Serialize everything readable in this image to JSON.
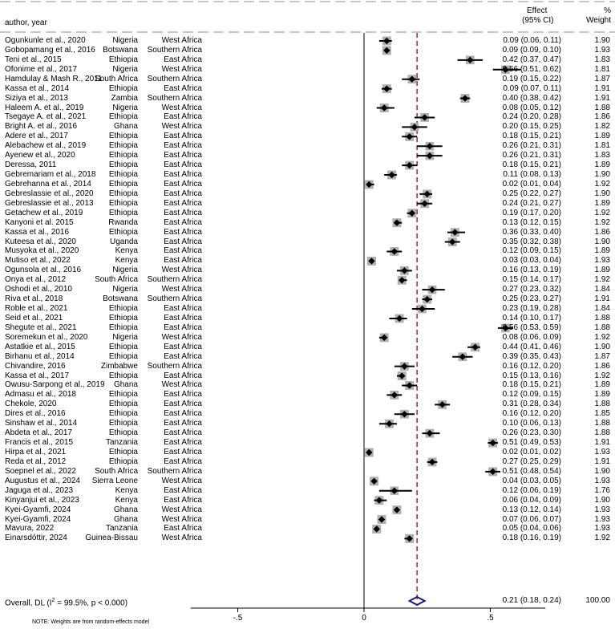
{
  "header": {
    "col_author": "author, year",
    "col_effect_1": "Effect",
    "col_effect_2": "(95% CI)",
    "col_pct": "%",
    "col_weight": "Weight"
  },
  "overall": {
    "label": "Overall, DL (I",
    "label_sup": "2",
    "label_rest": " = 99.5%, p < 0.000)",
    "ci": "0.21 (0.18, 0.24)",
    "weight": "100.00"
  },
  "footnote": "NOTE: Weights are from random-effects model",
  "chart_data": {
    "type": "forest",
    "title": "",
    "xlabel": "",
    "ylabel": "",
    "xlim": [
      -0.75,
      0.75
    ],
    "x_ticks": [
      -0.5,
      0,
      0.5
    ],
    "x_tick_labels": [
      "-.5",
      "0",
      ".5"
    ],
    "summary_line": 0.21,
    "studies": [
      {
        "author": "Ogunkunle et al., 2020",
        "country": "Nigeria",
        "region": "West Africa",
        "es": 0.09,
        "lo": 0.06,
        "hi": 0.11,
        "weight": 1.9,
        "text": "0.09 (0.06, 0.11)",
        "wtext": "1.90"
      },
      {
        "author": "Gobopamang et al., 2016",
        "country": "Botswana",
        "region": "Southern Africa",
        "es": 0.09,
        "lo": 0.09,
        "hi": 0.1,
        "weight": 1.93,
        "text": "0.09 (0.09, 0.10)",
        "wtext": "1.93"
      },
      {
        "author": "Teni et al., 2015",
        "country": "Ethiopia",
        "region": "East Africa",
        "es": 0.42,
        "lo": 0.37,
        "hi": 0.47,
        "weight": 1.83,
        "text": "0.42 (0.37, 0.47)",
        "wtext": "1.83"
      },
      {
        "author": "Ofonime et al., 2017",
        "country": "Nigeria",
        "region": "West Africa",
        "es": 0.56,
        "lo": 0.51,
        "hi": 0.62,
        "weight": 1.81,
        "text": "0.56 (0.51, 0.62)",
        "wtext": "1.81"
      },
      {
        "author": "Hamdulay & Mash R., 2011",
        "country": "South Africa",
        "region": "Southern Africa",
        "es": 0.19,
        "lo": 0.15,
        "hi": 0.22,
        "weight": 1.87,
        "text": "0.19 (0.15, 0.22)",
        "wtext": "1.87"
      },
      {
        "author": "Kassa et al., 2014",
        "country": "Ethiopia",
        "region": "East Africa",
        "es": 0.09,
        "lo": 0.07,
        "hi": 0.11,
        "weight": 1.91,
        "text": "0.09 (0.07, 0.11)",
        "wtext": "1.91"
      },
      {
        "author": "Siziya et al., 2013",
        "country": "Zambia",
        "region": "Southern Africa",
        "es": 0.4,
        "lo": 0.38,
        "hi": 0.42,
        "weight": 1.91,
        "text": "0.40 (0.38, 0.42)",
        "wtext": "1.91"
      },
      {
        "author": "Haleem A. et al., 2019",
        "country": "Nigeria",
        "region": "West Africa",
        "es": 0.08,
        "lo": 0.05,
        "hi": 0.12,
        "weight": 1.88,
        "text": "0.08 (0.05, 0.12)",
        "wtext": "1.88"
      },
      {
        "author": "Tsegaye A. et al., 2021",
        "country": "Ethiopia",
        "region": "East Africa",
        "es": 0.24,
        "lo": 0.2,
        "hi": 0.28,
        "weight": 1.86,
        "text": "0.24 (0.20, 0.28)",
        "wtext": "1.86"
      },
      {
        "author": "Bright A. et al., 2016",
        "country": "Ghana",
        "region": "West Africa",
        "es": 0.2,
        "lo": 0.15,
        "hi": 0.25,
        "weight": 1.82,
        "text": "0.20 (0.15, 0.25)",
        "wtext": "1.82"
      },
      {
        "author": "Adere et al., 2017",
        "country": "Ethiopia",
        "region": "East Africa",
        "es": 0.18,
        "lo": 0.15,
        "hi": 0.21,
        "weight": 1.89,
        "text": "0.18 (0.15, 0.21)",
        "wtext": "1.89"
      },
      {
        "author": "Alebachew et al., 2019",
        "country": "Ethiopia",
        "region": "East Africa",
        "es": 0.26,
        "lo": 0.21,
        "hi": 0.31,
        "weight": 1.81,
        "text": "0.26 (0.21, 0.31)",
        "wtext": "1.81"
      },
      {
        "author": "Ayenew et al., 2020",
        "country": "Ethiopia",
        "region": "East Africa",
        "es": 0.26,
        "lo": 0.21,
        "hi": 0.31,
        "weight": 1.83,
        "text": "0.26 (0.21, 0.31)",
        "wtext": "1.83"
      },
      {
        "author": "Deressa, 2011",
        "country": "Ethiopia",
        "region": "East Africa",
        "es": 0.18,
        "lo": 0.15,
        "hi": 0.21,
        "weight": 1.89,
        "text": "0.18 (0.15, 0.21)",
        "wtext": "1.89"
      },
      {
        "author": "Gebremariam et al., 2018",
        "country": "Ethiopia",
        "region": "East Africa",
        "es": 0.11,
        "lo": 0.08,
        "hi": 0.13,
        "weight": 1.9,
        "text": "0.11 (0.08, 0.13)",
        "wtext": "1.90"
      },
      {
        "author": "Gebrehanna et al., 2014",
        "country": "Ethiopia",
        "region": "East Africa",
        "es": 0.02,
        "lo": 0.01,
        "hi": 0.04,
        "weight": 1.92,
        "text": "0.02 (0.01, 0.04)",
        "wtext": "1.92"
      },
      {
        "author": "Gebreslassie et al., 2020",
        "country": "Ethiopia",
        "region": "East Africa",
        "es": 0.25,
        "lo": 0.22,
        "hi": 0.27,
        "weight": 1.9,
        "text": "0.25 (0.22, 0.27)",
        "wtext": "1.90"
      },
      {
        "author": "Gebreslassie et al., 2013",
        "country": "Ethiopia",
        "region": "East Africa",
        "es": 0.24,
        "lo": 0.21,
        "hi": 0.27,
        "weight": 1.89,
        "text": "0.24 (0.21, 0.27)",
        "wtext": "1.89"
      },
      {
        "author": "Getachew et al., 2019",
        "country": "Ethiopia",
        "region": "East Africa",
        "es": 0.19,
        "lo": 0.17,
        "hi": 0.2,
        "weight": 1.92,
        "text": "0.19 (0.17, 0.20)",
        "wtext": "1.92"
      },
      {
        "author": "Kanyoni et al. 2015",
        "country": "Rwanda",
        "region": "East Africa",
        "es": 0.13,
        "lo": 0.12,
        "hi": 0.15,
        "weight": 1.92,
        "text": "0.13 (0.12, 0.15)",
        "wtext": "1.92"
      },
      {
        "author": "Kassa et al., 2016",
        "country": "Ethiopia",
        "region": "East Africa",
        "es": 0.36,
        "lo": 0.33,
        "hi": 0.4,
        "weight": 1.86,
        "text": "0.36 (0.33, 0.40)",
        "wtext": "1.86"
      },
      {
        "author": "Kuteesa et al., 2020",
        "country": "Uganda",
        "region": "East Africa",
        "es": 0.35,
        "lo": 0.32,
        "hi": 0.38,
        "weight": 1.9,
        "text": "0.35 (0.32, 0.38)",
        "wtext": "1.90"
      },
      {
        "author": "Musyoka et al., 2020",
        "country": "Kenya",
        "region": "East Africa",
        "es": 0.12,
        "lo": 0.09,
        "hi": 0.15,
        "weight": 1.89,
        "text": "0.12 (0.09, 0.15)",
        "wtext": "1.89"
      },
      {
        "author": "Mutiso et al., 2022",
        "country": "Kenya",
        "region": "East Africa",
        "es": 0.03,
        "lo": 0.03,
        "hi": 0.04,
        "weight": 1.93,
        "text": "0.03 (0.03, 0.04)",
        "wtext": "1.93"
      },
      {
        "author": "Ogunsola et al., 2016",
        "country": "Nigeria",
        "region": "West Africa",
        "es": 0.16,
        "lo": 0.13,
        "hi": 0.19,
        "weight": 1.89,
        "text": "0.16 (0.13, 0.19)",
        "wtext": "1.89"
      },
      {
        "author": "Onya et al., 2012",
        "country": "South Africa",
        "region": "Southern Africa",
        "es": 0.15,
        "lo": 0.14,
        "hi": 0.17,
        "weight": 1.92,
        "text": "0.15 (0.14, 0.17)",
        "wtext": "1.92"
      },
      {
        "author": "Oshodi et al., 2010",
        "country": "Nigeria",
        "region": "West Africa",
        "es": 0.27,
        "lo": 0.23,
        "hi": 0.32,
        "weight": 1.84,
        "text": "0.27 (0.23, 0.32)",
        "wtext": "1.84"
      },
      {
        "author": "Riva et al., 2018",
        "country": "Botswana",
        "region": "Southern Africa",
        "es": 0.25,
        "lo": 0.23,
        "hi": 0.27,
        "weight": 1.91,
        "text": "0.25 (0.23, 0.27)",
        "wtext": "1.91"
      },
      {
        "author": "Roble et al., 2021",
        "country": "Ethiopia",
        "region": "East Africa",
        "es": 0.23,
        "lo": 0.19,
        "hi": 0.28,
        "weight": 1.84,
        "text": "0.23 (0.19, 0.28)",
        "wtext": "1.84"
      },
      {
        "author": "Seid et al., 2021",
        "country": "Ethiopia",
        "region": "East Africa",
        "es": 0.14,
        "lo": 0.1,
        "hi": 0.17,
        "weight": 1.88,
        "text": "0.14 (0.10, 0.17)",
        "wtext": "1.88"
      },
      {
        "author": "Shegute et al., 2021",
        "country": "Ethiopia",
        "region": "East Africa",
        "es": 0.56,
        "lo": 0.53,
        "hi": 0.59,
        "weight": 1.88,
        "text": "0.56 (0.53, 0.59)",
        "wtext": "1.88"
      },
      {
        "author": "Soremekun et al., 2020",
        "country": "Nigeria",
        "region": "West Africa",
        "es": 0.08,
        "lo": 0.06,
        "hi": 0.09,
        "weight": 1.92,
        "text": "0.08 (0.06, 0.09)",
        "wtext": "1.92"
      },
      {
        "author": "Astatkie et al., 2015",
        "country": "Ethiopia",
        "region": "East Africa",
        "es": 0.44,
        "lo": 0.41,
        "hi": 0.46,
        "weight": 1.9,
        "text": "0.44 (0.41, 0.46)",
        "wtext": "1.90"
      },
      {
        "author": "Birhanu et al., 2014",
        "country": "Ethiopia",
        "region": "East Africa",
        "es": 0.39,
        "lo": 0.35,
        "hi": 0.43,
        "weight": 1.87,
        "text": "0.39 (0.35, 0.43)",
        "wtext": "1.87"
      },
      {
        "author": "Chivandire, 2016",
        "country": "Zimbabwe",
        "region": "Southern Africa",
        "es": 0.16,
        "lo": 0.12,
        "hi": 0.2,
        "weight": 1.86,
        "text": "0.16 (0.12, 0.20)",
        "wtext": "1.86"
      },
      {
        "author": "Kassa et al., 2017",
        "country": "Ethiopia",
        "region": "East Africa",
        "es": 0.15,
        "lo": 0.13,
        "hi": 0.16,
        "weight": 1.92,
        "text": "0.15 (0.13, 0.16)",
        "wtext": "1.92"
      },
      {
        "author": "Owusu-Sarpong et al., 2019",
        "country": "Ghana",
        "region": "West Africa",
        "es": 0.18,
        "lo": 0.15,
        "hi": 0.21,
        "weight": 1.89,
        "text": "0.18 (0.15, 0.21)",
        "wtext": "1.89"
      },
      {
        "author": "Admasu et al., 2018",
        "country": "Ethiopia",
        "region": "East Africa",
        "es": 0.12,
        "lo": 0.09,
        "hi": 0.15,
        "weight": 1.89,
        "text": "0.12 (0.09, 0.15)",
        "wtext": "1.89"
      },
      {
        "author": "Chekole, 2020",
        "country": "Ethiopia",
        "region": "East Africa",
        "es": 0.31,
        "lo": 0.28,
        "hi": 0.34,
        "weight": 1.88,
        "text": "0.31 (0.28, 0.34)",
        "wtext": "1.88"
      },
      {
        "author": "Dires et al., 2016",
        "country": "Ethiopia",
        "region": "East Africa",
        "es": 0.16,
        "lo": 0.12,
        "hi": 0.2,
        "weight": 1.85,
        "text": "0.16 (0.12, 0.20)",
        "wtext": "1.85"
      },
      {
        "author": "Sinshaw et al., 2014",
        "country": "Ethiopia",
        "region": "East Africa",
        "es": 0.1,
        "lo": 0.06,
        "hi": 0.13,
        "weight": 1.88,
        "text": "0.10 (0.06, 0.13)",
        "wtext": "1.88"
      },
      {
        "author": "Abdeta et al., 2017",
        "country": "Ethiopia",
        "region": "East Africa",
        "es": 0.26,
        "lo": 0.23,
        "hi": 0.3,
        "weight": 1.88,
        "text": "0.26 (0.23, 0.30)",
        "wtext": "1.88"
      },
      {
        "author": "Francis et al., 2015",
        "country": "Tanzania",
        "region": "East Africa",
        "es": 0.51,
        "lo": 0.49,
        "hi": 0.53,
        "weight": 1.91,
        "text": "0.51 (0.49, 0.53)",
        "wtext": "1.91"
      },
      {
        "author": "Hirpa et al., 2021",
        "country": "Ethiopia",
        "region": "East Africa",
        "es": 0.02,
        "lo": 0.01,
        "hi": 0.02,
        "weight": 1.93,
        "text": "0.02 (0.01, 0.02)",
        "wtext": "1.93"
      },
      {
        "author": "Reda et al., 2012",
        "country": "Ethiopia",
        "region": "East Africa",
        "es": 0.27,
        "lo": 0.25,
        "hi": 0.29,
        "weight": 1.91,
        "text": "0.27 (0.25, 0.29)",
        "wtext": "1.91"
      },
      {
        "author": "Soepnel et al., 2022",
        "country": "South Africa",
        "region": "Southern Africa",
        "es": 0.51,
        "lo": 0.48,
        "hi": 0.54,
        "weight": 1.9,
        "text": "0.51 (0.48, 0.54)",
        "wtext": "1.90"
      },
      {
        "author": "Augustus et al., 2024",
        "country": "Sierra Leone",
        "region": "West Africa",
        "es": 0.04,
        "lo": 0.03,
        "hi": 0.05,
        "weight": 1.93,
        "text": "0.04 (0.03, 0.05)",
        "wtext": "1.93"
      },
      {
        "author": "Jaguga et al., 2023",
        "country": "Kenya",
        "region": "East Africa",
        "es": 0.12,
        "lo": 0.06,
        "hi": 0.19,
        "weight": 1.76,
        "text": "0.12 (0.06, 0.19)",
        "wtext": "1.76"
      },
      {
        "author": "Kinyanjui et al., 2023",
        "country": "Kenya",
        "region": "East Africa",
        "es": 0.06,
        "lo": 0.04,
        "hi": 0.09,
        "weight": 1.9,
        "text": "0.06 (0.04, 0.09)",
        "wtext": "1.90"
      },
      {
        "author": "Kyei-Gyamfi, 2024",
        "country": "Ghana",
        "region": "West Africa",
        "es": 0.13,
        "lo": 0.12,
        "hi": 0.14,
        "weight": 1.93,
        "text": "0.13 (0.12, 0.14)",
        "wtext": "1.93"
      },
      {
        "author": "Kyei-Gyamfi, 2024",
        "country": "Ghana",
        "region": "West Africa",
        "es": 0.07,
        "lo": 0.06,
        "hi": 0.07,
        "weight": 1.93,
        "text": "0.07 (0.06, 0.07)",
        "wtext": "1.93"
      },
      {
        "author": "Mavura, 2022",
        "country": "Tanzania",
        "region": "East Africa",
        "es": 0.05,
        "lo": 0.04,
        "hi": 0.06,
        "weight": 1.93,
        "text": "0.05 (0.04, 0.06)",
        "wtext": "1.93"
      },
      {
        "author": "Einarsdóttir, 2024",
        "country": "Guinea-Bissau",
        "region": "West Africa",
        "es": 0.18,
        "lo": 0.16,
        "hi": 0.19,
        "weight": 1.92,
        "text": "0.18 (0.16, 0.19)",
        "wtext": "1.92"
      }
    ],
    "pooled": {
      "es": 0.21,
      "lo": 0.18,
      "hi": 0.24,
      "weight": 100.0
    },
    "colors": {
      "box": "#b0b0b0",
      "point": "#000000",
      "summary_line": "#9b2335",
      "diamond": "#1a1a6e",
      "zero_line": "#000000",
      "dash": "#c8c8c8"
    }
  }
}
